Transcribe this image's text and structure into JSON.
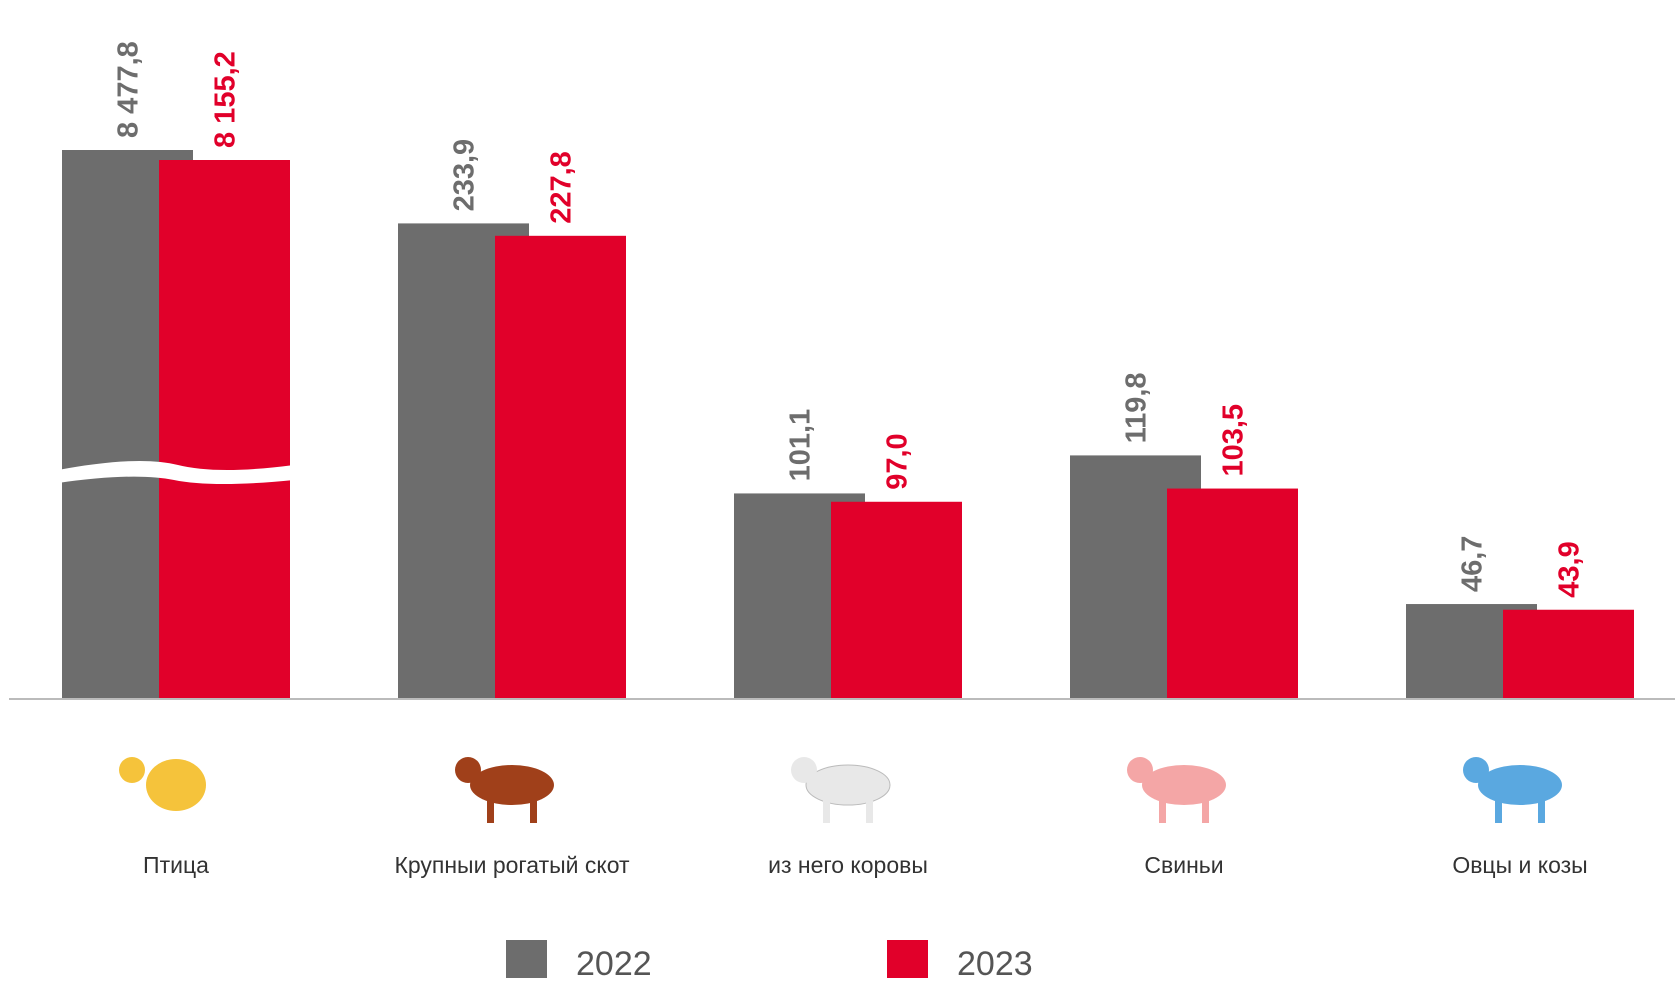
{
  "chart_data": {
    "type": "bar",
    "categories": [
      "Птица",
      "Крупныи рогатый скот",
      "из него коровы",
      "Свиньи",
      "Овцы и козы"
    ],
    "series": [
      {
        "name": "2022",
        "color": "#6d6d6d",
        "values": [
          8477.8,
          233.9,
          101.1,
          119.8,
          46.7
        ],
        "value_labels": [
          "8 477,8",
          "233,9",
          "101,1",
          "119,8",
          "46,7"
        ]
      },
      {
        "name": "2023",
        "color": "#e1002a",
        "values": [
          8155.2,
          227.8,
          97.0,
          103.5,
          43.9
        ],
        "value_labels": [
          "8 155,2",
          "227,8",
          "97,0",
          "103,5",
          "43,9"
        ]
      }
    ],
    "ylim": [
      0,
      300
    ],
    "axis_break": true,
    "legend": "bottom"
  }
}
